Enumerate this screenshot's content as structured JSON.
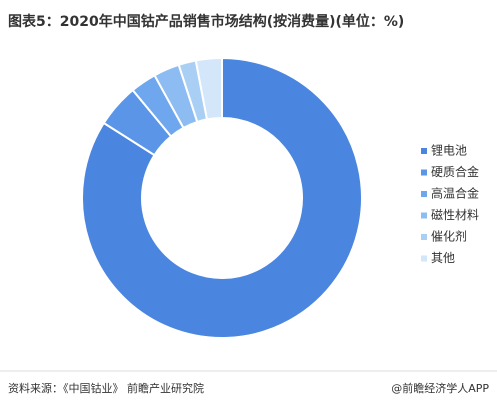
{
  "chart_data": {
    "type": "donut",
    "title": "图表5：2020年中国钴产品销售市场结构(按消费量)(单位：%)",
    "categories": [
      "锂电池",
      "硬质合金",
      "高温合金",
      "磁性材料",
      "催化剂",
      "其他"
    ],
    "values": [
      84,
      5,
      3,
      3,
      2,
      3
    ],
    "colors": [
      "#4a86e0",
      "#5a95e8",
      "#6ea7ee",
      "#8cbcf1",
      "#a9cff5",
      "#d3e6fa"
    ],
    "source": "资料来源：《中国钴业》 前瞻产业研究院",
    "credit": "@前瞻经济学人APP"
  }
}
